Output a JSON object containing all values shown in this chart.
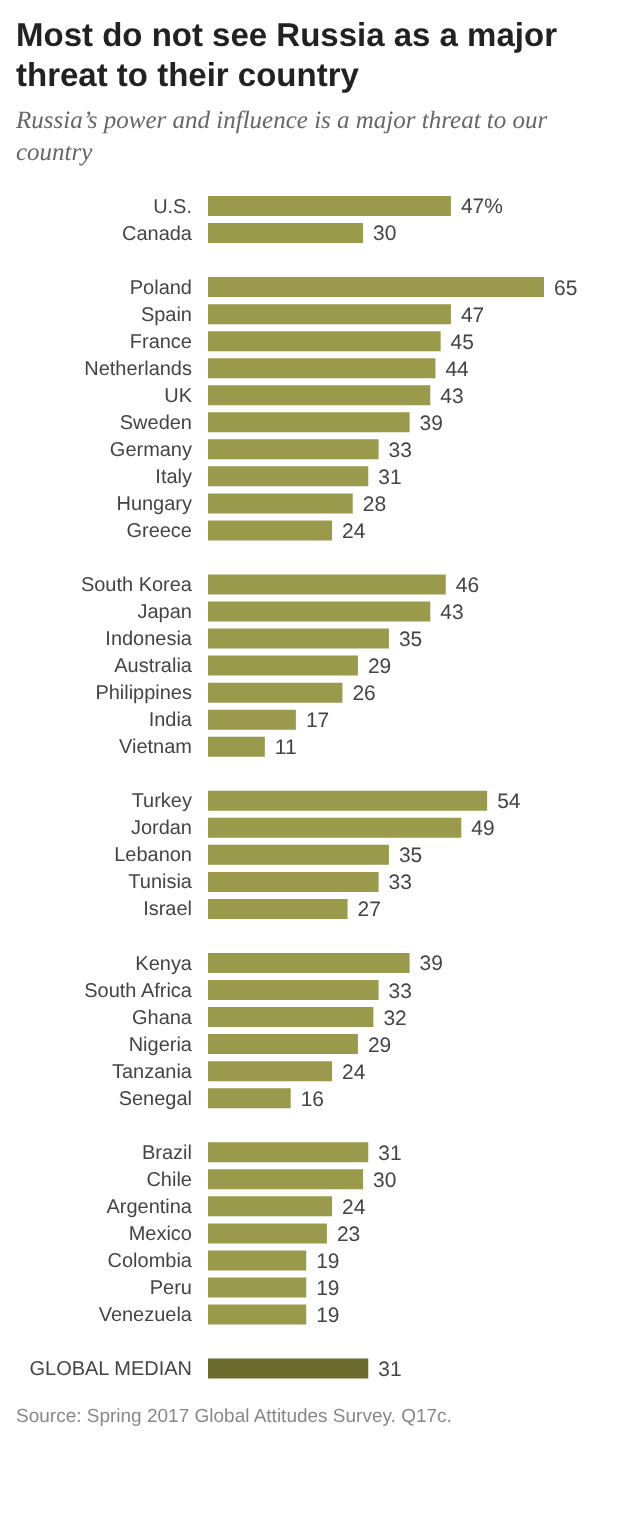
{
  "chart_data": {
    "type": "bar",
    "orientation": "horizontal",
    "title": "Most do not see Russia as a major threat to their country",
    "subtitle": "Russia’s power and influence is a major threat to our country",
    "categories": [
      "U.S.",
      "Canada",
      null,
      "Poland",
      "Spain",
      "France",
      "Netherlands",
      "UK",
      "Sweden",
      "Germany",
      "Italy",
      "Hungary",
      "Greece",
      null,
      "South Korea",
      "Japan",
      "Indonesia",
      "Australia",
      "Philippines",
      "India",
      "Vietnam",
      null,
      "Turkey",
      "Jordan",
      "Lebanon",
      "Tunisia",
      "Israel",
      null,
      "Kenya",
      "South Africa",
      "Ghana",
      "Nigeria",
      "Tanzania",
      "Senegal",
      null,
      "Brazil",
      "Chile",
      "Argentina",
      "Mexico",
      "Colombia",
      "Peru",
      "Venezuela",
      null,
      "GLOBAL MEDIAN"
    ],
    "values": [
      47,
      30,
      null,
      65,
      47,
      45,
      44,
      43,
      39,
      33,
      31,
      28,
      24,
      null,
      46,
      43,
      35,
      29,
      26,
      17,
      11,
      null,
      54,
      49,
      35,
      33,
      27,
      null,
      39,
      33,
      32,
      29,
      24,
      16,
      null,
      31,
      30,
      24,
      23,
      19,
      19,
      19,
      null,
      31
    ],
    "value_labels": [
      "47%",
      "30",
      null,
      "65",
      "47",
      "45",
      "44",
      "43",
      "39",
      "33",
      "31",
      "28",
      "24",
      null,
      "46",
      "43",
      "35",
      "29",
      "26",
      "17",
      "11",
      null,
      "54",
      "49",
      "35",
      "33",
      "27",
      null,
      "39",
      "33",
      "32",
      "29",
      "24",
      "16",
      null,
      "31",
      "30",
      "24",
      "23",
      "19",
      "19",
      "19",
      null,
      "31"
    ],
    "colors": [
      "#999a4c",
      "#999a4c",
      null,
      "#999a4c",
      "#999a4c",
      "#999a4c",
      "#999a4c",
      "#999a4c",
      "#999a4c",
      "#999a4c",
      "#999a4c",
      "#999a4c",
      "#999a4c",
      null,
      "#999a4c",
      "#999a4c",
      "#999a4c",
      "#999a4c",
      "#999a4c",
      "#999a4c",
      "#999a4c",
      null,
      "#999a4c",
      "#999a4c",
      "#999a4c",
      "#999a4c",
      "#999a4c",
      null,
      "#999a4c",
      "#999a4c",
      "#999a4c",
      "#999a4c",
      "#999a4c",
      "#999a4c",
      null,
      "#999a4c",
      "#999a4c",
      "#999a4c",
      "#999a4c",
      "#999a4c",
      "#999a4c",
      "#999a4c",
      null,
      "#6b6b2e"
    ],
    "annotations": [
      "Source: Spring 2017 Global Attitudes Survey. Q17c."
    ],
    "grid": false,
    "legend": false
  }
}
